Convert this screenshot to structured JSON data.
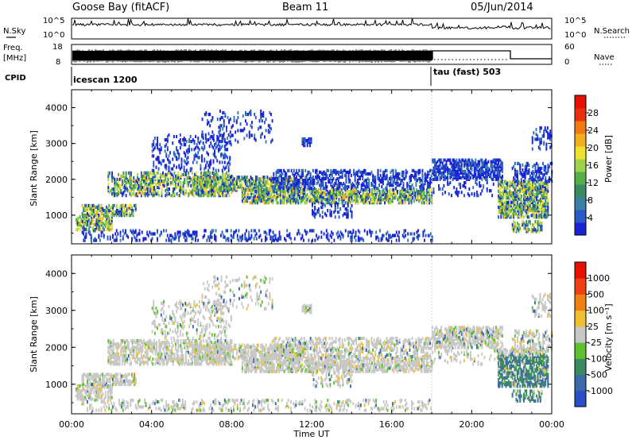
{
  "header": {
    "station": "Goose Bay (fitACF)",
    "beam": "Beam 11",
    "date": "05/Jun/2014"
  },
  "noise_panel": {
    "left_label": "N.Sky",
    "right_label": "N.Search",
    "y_ticks": [
      "10^5",
      "10^0"
    ]
  },
  "freq_panel": {
    "left_label_line1": "Freq.",
    "left_label_line2": "[MHz]",
    "left_ticks": [
      "18",
      "8"
    ],
    "right_label": "Nave",
    "right_ticks": [
      "60",
      "0"
    ]
  },
  "cpid_panel": {
    "label": "CPID",
    "modes": [
      {
        "name": "icescan 1200",
        "start_hour": 0
      },
      {
        "name": "tau (fast) 503",
        "start_hour": 18
      }
    ]
  },
  "chart_data": [
    {
      "type": "heatmap",
      "name": "power",
      "xlabel": "",
      "ylabel": "Slant Range [km]",
      "y_ticks": [
        "1000",
        "2000",
        "3000",
        "4000"
      ],
      "ylim": [
        200,
        4500
      ],
      "xlim_hours": [
        0,
        24
      ],
      "colorbar": {
        "label": "Power [dB]",
        "ticks": [
          "4",
          "8",
          "12",
          "16",
          "20",
          "24",
          "28"
        ],
        "colors": [
          "#1a23d6",
          "#2a59c8",
          "#3a7fa6",
          "#3b8a62",
          "#56b04a",
          "#9bd34a",
          "#f0e030",
          "#f0b020",
          "#f07a10",
          "#e83010",
          "#e81000"
        ]
      }
    },
    {
      "type": "heatmap",
      "name": "velocity",
      "xlabel": "Time UT",
      "ylabel": "Slant Range [km]",
      "x_ticks": [
        "00:00",
        "04:00",
        "08:00",
        "12:00",
        "16:00",
        "20:00",
        "00:00"
      ],
      "y_ticks": [
        "1000",
        "2000",
        "3000",
        "4000"
      ],
      "ylim": [
        200,
        4500
      ],
      "xlim_hours": [
        0,
        24
      ],
      "colorbar": {
        "label": "Velocity [m s⁻¹]",
        "ticks": [
          "1000",
          "500",
          "100",
          "25",
          "-25",
          "-100",
          "-500",
          "-1000"
        ],
        "colors": [
          "#2a4fc8",
          "#3a6aa8",
          "#3b8a62",
          "#5fc030",
          "#c8c8c8",
          "#f0c030",
          "#f08010",
          "#f04010",
          "#e81000"
        ]
      }
    }
  ]
}
